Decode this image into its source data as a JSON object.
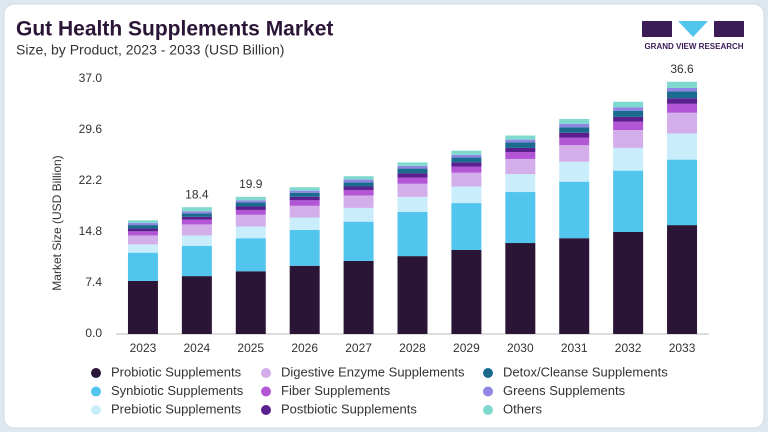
{
  "brand": "GRAND VIEW RESEARCH",
  "chart_data": {
    "type": "stacked_bar",
    "title": "Gut Health Supplements Market",
    "subtitle": "Size, by Product, 2023 - 2033 (USD Billion)",
    "y_label": "Market Size (USD Billion)",
    "categories": [
      "2023",
      "2024",
      "2025",
      "2026",
      "2027",
      "2028",
      "2029",
      "2030",
      "2031",
      "2032",
      "2033"
    ],
    "series": [
      {
        "name": "Probiotic Supplements",
        "color": "#2b1536",
        "values": [
          7.7,
          8.4,
          9.1,
          9.9,
          10.6,
          11.3,
          12.2,
          13.2,
          13.9,
          14.8,
          15.8
        ]
      },
      {
        "name": "Synbiotic Supplements",
        "color": "#52c5ef",
        "values": [
          4.1,
          4.4,
          4.8,
          5.2,
          5.7,
          6.4,
          6.8,
          7.4,
          8.2,
          8.9,
          9.5
        ]
      },
      {
        "name": "Prebiotic Supplements",
        "color": "#c9edfb",
        "values": [
          1.2,
          1.5,
          1.7,
          1.8,
          2.0,
          2.2,
          2.4,
          2.6,
          2.9,
          3.3,
          3.8
        ]
      },
      {
        "name": "Digestive Enzyme Supplements",
        "color": "#d3aeea",
        "values": [
          1.3,
          1.6,
          1.7,
          1.7,
          1.8,
          1.9,
          2.0,
          2.2,
          2.4,
          2.6,
          3.0
        ]
      },
      {
        "name": "Fiber Supplements",
        "color": "#b356d6",
        "values": [
          0.6,
          0.7,
          0.7,
          0.8,
          0.8,
          0.9,
          0.9,
          1.0,
          1.1,
          1.2,
          1.3
        ]
      },
      {
        "name": "Postbiotic Supplements",
        "color": "#5b1f8f",
        "values": [
          0.4,
          0.4,
          0.5,
          0.5,
          0.5,
          0.6,
          0.6,
          0.6,
          0.7,
          0.7,
          0.8
        ]
      },
      {
        "name": "Detox/Cleanse Supplements",
        "color": "#1b6b8f",
        "values": [
          0.5,
          0.5,
          0.6,
          0.6,
          0.6,
          0.7,
          0.7,
          0.8,
          0.8,
          0.9,
          1.0
        ]
      },
      {
        "name": "Greens Supplements",
        "color": "#8f86e3",
        "values": [
          0.3,
          0.3,
          0.3,
          0.3,
          0.4,
          0.4,
          0.4,
          0.4,
          0.5,
          0.5,
          0.5
        ]
      },
      {
        "name": "Others",
        "color": "#7fd9cf",
        "values": [
          0.4,
          0.6,
          0.5,
          0.5,
          0.5,
          0.5,
          0.6,
          0.6,
          0.7,
          0.8,
          0.9
        ]
      }
    ],
    "total_labels": [
      null,
      "18.4",
      "19.9",
      null,
      null,
      null,
      null,
      null,
      null,
      null,
      "36.6"
    ],
    "ylim": [
      0,
      37
    ],
    "yticks": [
      {
        "value": 0,
        "label": "0.0"
      },
      7.4,
      14.8,
      22.2,
      29.6,
      {
        "value": 37,
        "label": "37.0"
      }
    ],
    "grid": false,
    "legend": "bottom"
  }
}
